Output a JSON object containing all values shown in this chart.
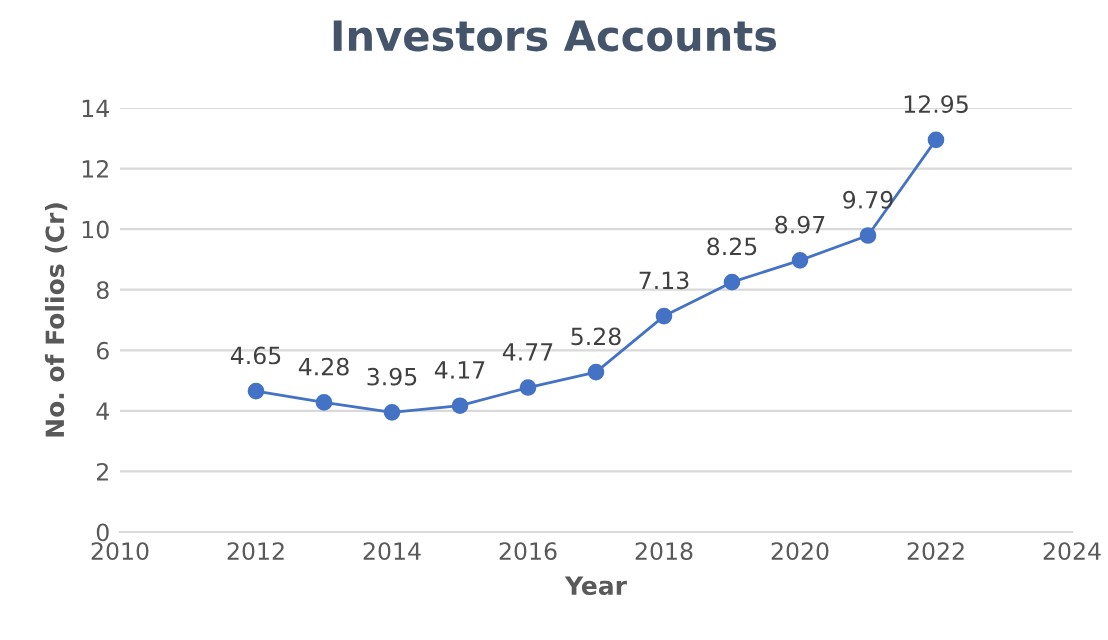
{
  "chart_data": {
    "type": "line",
    "title": "Investors Accounts",
    "xlabel": "Year",
    "ylabel": "No. of Folios (Cr)",
    "x": [
      2012,
      2013,
      2014,
      2015,
      2016,
      2017,
      2018,
      2019,
      2020,
      2021,
      2022
    ],
    "series": [
      {
        "color": "#4472c4",
        "values": [
          4.65,
          4.28,
          3.95,
          4.17,
          4.77,
          5.28,
          7.13,
          8.25,
          8.97,
          9.79,
          12.95
        ]
      }
    ],
    "xlim": [
      2010,
      2024
    ],
    "xticks": [
      2010,
      2012,
      2014,
      2016,
      2018,
      2020,
      2022,
      2024
    ],
    "ylim": [
      0,
      14
    ],
    "yticks": [
      0,
      2,
      4,
      6,
      8,
      10,
      12,
      14
    ],
    "grid": "y",
    "marker": "circle",
    "line_style": "solid",
    "data_labels": true
  }
}
